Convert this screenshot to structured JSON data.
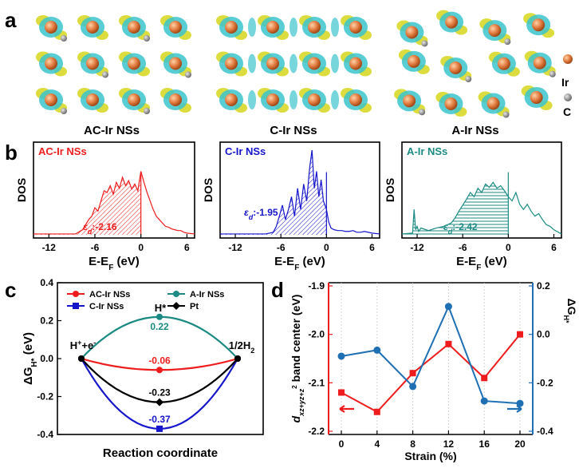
{
  "colors": {
    "ac": "#ee1c1c",
    "c": "#1515cc",
    "a": "#1a8a82",
    "pt": "#000000",
    "strain_left": "#ee1c1c",
    "strain_right": "#1f6fb4",
    "ir_atom": "#e0783c",
    "c_atom": "#8a8a8a",
    "cyan_lobe": "#3cc4cc",
    "yellow_lobe": "#d8d82a"
  },
  "panel_a": {
    "label": "a",
    "structures": [
      {
        "caption": "AC-Ir NSs"
      },
      {
        "caption": "C-Ir NSs"
      },
      {
        "caption": "A-Ir NSs"
      }
    ],
    "legend": [
      {
        "label": "Ir",
        "icon": "ir-atom-icon"
      },
      {
        "label": "C",
        "icon": "c-atom-icon"
      }
    ]
  },
  "chart_data": [
    {
      "panel": "b",
      "type": "area",
      "xlabel": "E-E",
      "xlabel_sub": "F",
      "xlabel_unit": " (eV)",
      "ylabel": "DOS",
      "xlim": [
        -14,
        7
      ],
      "xticks": [
        "-12",
        "-6",
        "0",
        "6"
      ],
      "subplots": [
        {
          "name": "AC-Ir NSs",
          "color_key": "ac",
          "band_center_label": "ε",
          "band_center_sub": "d",
          "band_center_value": ":-2.16",
          "x": [
            -14,
            -11.5,
            -8.5,
            -7.6,
            -7.2,
            -6.8,
            -6.4,
            -6.0,
            -5.6,
            -5.2,
            -4.8,
            -4.4,
            -4.0,
            -3.6,
            -3.2,
            -2.8,
            -2.4,
            -2.0,
            -1.6,
            -1.2,
            -0.8,
            -0.4,
            0.0,
            0.4,
            0.8,
            1.2,
            1.6,
            2.0,
            2.4,
            2.8,
            3.2,
            3.6,
            4.0,
            4.4,
            4.8,
            5.2,
            5.6,
            6.0,
            7.0
          ],
          "y": [
            0.01,
            0.01,
            0.01,
            0.06,
            0.12,
            0.18,
            0.22,
            0.32,
            0.28,
            0.4,
            0.52,
            0.5,
            0.58,
            0.48,
            0.62,
            0.55,
            0.68,
            0.58,
            0.64,
            0.54,
            0.6,
            0.52,
            0.75,
            0.62,
            0.5,
            0.4,
            0.3,
            0.22,
            0.18,
            0.14,
            0.1,
            0.09,
            0.07,
            0.06,
            0.05,
            0.05,
            0.03,
            0.02,
            0.01
          ]
        },
        {
          "name": "C-Ir NSs",
          "color_key": "c",
          "band_center_label": "ε",
          "band_center_sub": "d",
          "band_center_value": ":-1.95",
          "x": [
            -14,
            -8.0,
            -7.0,
            -6.6,
            -6.2,
            -5.8,
            -5.4,
            -5.0,
            -4.6,
            -4.2,
            -3.8,
            -3.4,
            -3.0,
            -2.6,
            -2.2,
            -1.9,
            -1.6,
            -1.3,
            -1.0,
            -0.7,
            -0.4,
            0.0,
            0.3,
            0.6,
            1.0,
            1.5,
            2.0,
            2.5,
            3.0,
            3.5,
            4.0,
            4.5,
            5.0,
            6.0,
            7.0
          ],
          "y": [
            0.01,
            0.01,
            0.03,
            0.1,
            0.22,
            0.35,
            0.18,
            0.3,
            0.45,
            0.22,
            0.55,
            0.3,
            0.6,
            0.4,
            0.8,
            1.0,
            0.55,
            0.75,
            0.45,
            0.65,
            0.4,
            0.3,
            0.15,
            0.08,
            0.06,
            0.05,
            0.05,
            0.04,
            0.04,
            0.05,
            0.03,
            0.03,
            0.04,
            0.02,
            0.01
          ]
        },
        {
          "name": "A-Ir NSs",
          "color_key": "a",
          "band_center_label": "ε",
          "band_center_sub": "d",
          "band_center_value": ":-2.42",
          "x": [
            -14,
            -12.6,
            -12.4,
            -12.2,
            -12.0,
            -11.8,
            -11.5,
            -10.5,
            -9.5,
            -8.5,
            -7.5,
            -7.0,
            -6.5,
            -6.0,
            -5.5,
            -5.0,
            -4.5,
            -4.0,
            -3.5,
            -3.0,
            -2.5,
            -2.0,
            -1.5,
            -1.0,
            -0.5,
            0.0,
            0.5,
            1.0,
            1.5,
            2.0,
            2.5,
            3.0,
            3.5,
            4.0,
            4.5,
            5.0,
            5.5,
            6.0,
            7.0
          ],
          "y": [
            0.01,
            0.02,
            0.3,
            0.06,
            0.1,
            0.04,
            0.08,
            0.05,
            0.08,
            0.1,
            0.14,
            0.2,
            0.28,
            0.35,
            0.42,
            0.5,
            0.45,
            0.55,
            0.5,
            0.6,
            0.56,
            0.62,
            0.55,
            0.58,
            0.52,
            0.45,
            0.4,
            0.5,
            0.36,
            0.3,
            0.36,
            0.28,
            0.22,
            0.25,
            0.18,
            0.12,
            0.1,
            0.06,
            0.01
          ]
        }
      ]
    },
    {
      "panel": "c",
      "type": "line",
      "xlabel": "Reaction coordinate",
      "ylabel": "ΔG",
      "ylabel_sub": "H*",
      "ylabel_unit": " (eV)",
      "ylim": [
        -0.4,
        0.4
      ],
      "yticks": [
        "-0.4",
        "-0.2",
        "0.0",
        "0.2",
        "0.4"
      ],
      "state_labels": {
        "initial": "H",
        "initial_sup": "+",
        "initial_rest": "+e",
        "initial_sup2": "-",
        "middle": "H*",
        "final": "1/2H",
        "final_sub": "2"
      },
      "series": [
        {
          "name": "AC-Ir NSs",
          "color_key": "ac",
          "marker": "circle",
          "values": [
            0.0,
            -0.06,
            0.0
          ],
          "label": "-0.06"
        },
        {
          "name": "A-Ir NSs",
          "color_key": "a",
          "marker": "circle",
          "values": [
            0.0,
            0.22,
            0.0
          ],
          "label": "0.22"
        },
        {
          "name": "C-Ir NSs",
          "color_key": "c",
          "marker": "square",
          "values": [
            0.0,
            -0.37,
            0.0
          ],
          "label": "-0.37"
        },
        {
          "name": "Pt",
          "color_key": "pt",
          "marker": "diamond",
          "values": [
            0.0,
            -0.23,
            0.0
          ],
          "label": "-0.23"
        }
      ]
    },
    {
      "panel": "d",
      "type": "line",
      "xlabel": "Strain (%)",
      "categories": [
        0,
        4,
        8,
        12,
        16,
        20
      ],
      "xticks": [
        "0",
        "4",
        "8",
        "12",
        "16",
        "20"
      ],
      "ylabel_left": "band center (eV)",
      "ylabel_left_prefix": "d",
      "ylabel_left_sub": "xz+yz+z",
      "ylabel_left_sup": "2",
      "ylim_left": [
        -2.2,
        -1.9
      ],
      "yticks_left": [
        "-2.2",
        "-2.1",
        "-2.0",
        "-1.9"
      ],
      "ylabel_right": "ΔG",
      "ylabel_right_sub": "H*",
      "ylim_right": [
        -0.4,
        0.2
      ],
      "yticks_right": [
        "-0.4",
        "-0.2",
        "0.0",
        "0.2"
      ],
      "series": [
        {
          "name": "band center",
          "axis": "left",
          "color_key": "strain_left",
          "marker": "square",
          "values": [
            -2.12,
            -2.16,
            -2.08,
            -2.02,
            -2.09,
            -2.0
          ]
        },
        {
          "name": "ΔG",
          "axis": "right",
          "color_key": "strain_right",
          "marker": "circle",
          "values": [
            -0.09,
            -0.065,
            -0.215,
            0.115,
            -0.275,
            -0.285
          ]
        }
      ]
    }
  ],
  "panel_b": {
    "label": "b"
  },
  "panel_c": {
    "label": "c"
  },
  "panel_d": {
    "label": "d"
  }
}
